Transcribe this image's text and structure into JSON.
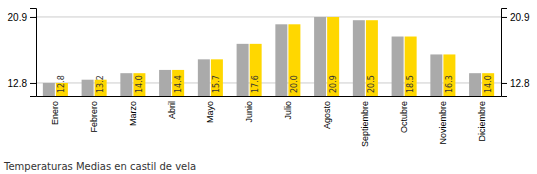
{
  "chart_data": {
    "type": "bar",
    "title": "Temperaturas Medias en castil de vela",
    "categories": [
      "Enero",
      "Febrero",
      "Marzo",
      "Abril",
      "Mayo",
      "Junio",
      "Julio",
      "Agosto",
      "Septiembre",
      "Octubre",
      "Noviembre",
      "Diciembre"
    ],
    "series": [
      {
        "color": "#AAAAAA",
        "values": [
          12.8,
          13.2,
          14.0,
          14.4,
          15.7,
          17.6,
          20.0,
          20.9,
          20.5,
          18.5,
          16.3,
          14.0
        ]
      },
      {
        "color": "#FFD700",
        "values": [
          12.8,
          13.2,
          14.0,
          14.4,
          15.7,
          17.6,
          20.0,
          20.9,
          20.5,
          18.5,
          16.3,
          14.0
        ],
        "value_labels": [
          "12.8",
          "13.2",
          "14.0",
          "14.4",
          "15.7",
          "17.6",
          "20.0",
          "20.9",
          "20.5",
          "18.5",
          "16.3",
          "14.0"
        ]
      }
    ],
    "ylim": [
      11.2,
      22.0
    ],
    "yticks": [
      12.8,
      20.9
    ],
    "y2lim": [
      11.2,
      22.0
    ],
    "y2ticks": [
      12.8,
      20.9
    ],
    "grid": true,
    "data_labels": true
  }
}
